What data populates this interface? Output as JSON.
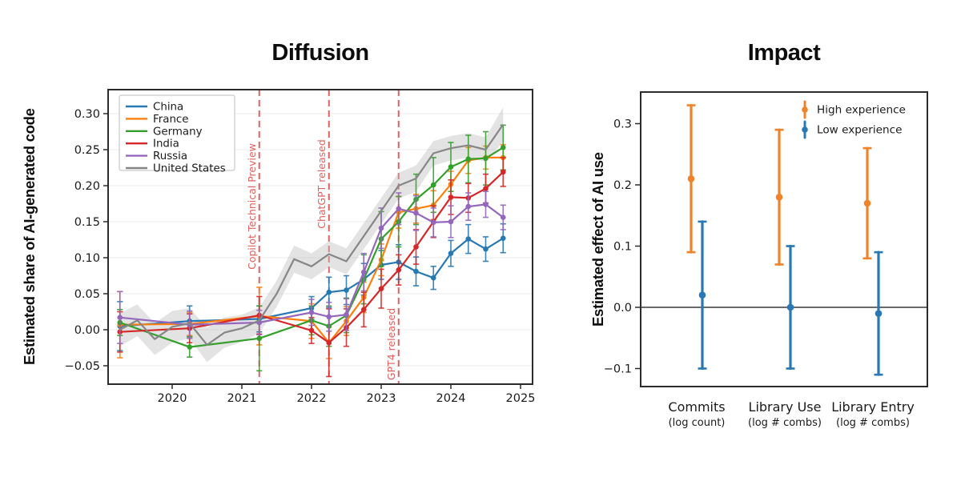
{
  "figure": {
    "background": "#ffffff",
    "panel_titles": [
      "Diffusion",
      "Impact"
    ]
  },
  "chart_data": [
    {
      "type": "line",
      "title": "Diffusion",
      "xlabel": "",
      "ylabel": "Estimated share of AI-generated code",
      "grid": "horizontal",
      "legend_position": "upper-left",
      "xlim": [
        2019.08,
        2025.17
      ],
      "ylim": [
        -0.076,
        0.334
      ],
      "xticks": {
        "values": [
          2020,
          2021,
          2022,
          2023,
          2024,
          2025
        ],
        "labels": [
          "2020",
          "2021",
          "2022",
          "2023",
          "2024",
          "2025"
        ]
      },
      "yticks": {
        "values": [
          -0.05,
          0.0,
          0.05,
          0.1,
          0.15,
          0.2,
          0.25,
          0.3
        ],
        "labels": [
          "−0.05",
          "0.00",
          "0.05",
          "0.10",
          "0.15",
          "0.20",
          "0.25",
          "0.30"
        ]
      },
      "annotation_color": "#e2605e",
      "annotations": [
        {
          "label": "Copilot Technical Preview",
          "x": 2021.25,
          "label_cy": 258
        },
        {
          "label": "ChatGPT released",
          "x": 2022.25,
          "label_cy": 230
        },
        {
          "label": "GPT4 released",
          "x": 2023.25,
          "label_cy": 430
        }
      ],
      "series": [
        {
          "name": "China",
          "color": "#2779b4",
          "marker": "circle",
          "x": [
            2019.25,
            2020.25,
            2021.25,
            2022.0,
            2022.25,
            2022.5,
            2022.75,
            2023.0,
            2023.25,
            2023.5,
            2023.75,
            2024.0,
            2024.25,
            2024.5,
            2024.75
          ],
          "y": [
            0.005,
            0.012,
            0.015,
            0.03,
            0.052,
            0.055,
            0.07,
            0.09,
            0.094,
            0.081,
            0.072,
            0.106,
            0.126,
            0.112,
            0.127
          ],
          "err": [
            0.034,
            0.021,
            0.018,
            0.016,
            0.021,
            0.02,
            0.022,
            0.02,
            0.024,
            0.02,
            0.016,
            0.018,
            0.02,
            0.017,
            0.02
          ]
        },
        {
          "name": "France",
          "color": "#ff7f0e",
          "marker": "circle",
          "x": [
            2019.25,
            2020.25,
            2021.25,
            2022.0,
            2022.25,
            2022.5,
            2022.75,
            2023.0,
            2023.25,
            2023.5,
            2023.75,
            2024.0,
            2024.25,
            2024.5,
            2024.75
          ],
          "y": [
            0.007,
            0.008,
            0.019,
            0.012,
            -0.018,
            0.012,
            0.045,
            0.097,
            0.163,
            0.168,
            0.173,
            0.202,
            0.235,
            0.239,
            0.239
          ],
          "err": [
            0.046,
            0.016,
            0.04,
            0.024,
            0.022,
            0.02,
            0.021,
            0.022,
            0.022,
            0.02,
            0.02,
            0.018,
            0.018,
            0.016,
            0.018
          ]
        },
        {
          "name": "Germany",
          "color": "#33a02c",
          "marker": "circle",
          "x": [
            2019.25,
            2020.25,
            2021.25,
            2022.0,
            2022.25,
            2022.5,
            2022.75,
            2023.0,
            2023.25,
            2023.5,
            2023.75,
            2024.0,
            2024.25,
            2024.5,
            2024.75
          ],
          "y": [
            0.01,
            -0.024,
            -0.012,
            0.013,
            0.005,
            0.02,
            0.07,
            0.126,
            0.15,
            0.181,
            0.201,
            0.226,
            0.237,
            0.238,
            0.253
          ],
          "err": [
            0.018,
            0.014,
            0.045,
            0.02,
            0.028,
            0.024,
            0.034,
            0.038,
            0.035,
            0.035,
            0.038,
            0.034,
            0.033,
            0.037,
            0.031
          ]
        },
        {
          "name": "India",
          "color": "#d62728",
          "marker": "circle",
          "x": [
            2019.25,
            2020.25,
            2021.25,
            2022.0,
            2022.25,
            2022.5,
            2022.75,
            2023.0,
            2023.25,
            2023.5,
            2023.75,
            2024.0,
            2024.25,
            2024.5,
            2024.75
          ],
          "y": [
            -0.003,
            0.002,
            0.02,
            -0.001,
            -0.018,
            0.003,
            0.028,
            0.057,
            0.083,
            0.115,
            0.15,
            0.184,
            0.183,
            0.196,
            0.219
          ],
          "err": [
            0.028,
            0.02,
            0.026,
            0.018,
            0.047,
            0.026,
            0.024,
            0.027,
            0.021,
            0.024,
            0.022,
            0.024,
            0.02,
            0.02,
            0.02
          ]
        },
        {
          "name": "Russia",
          "color": "#9467bd",
          "marker": "circle",
          "x": [
            2019.25,
            2020.25,
            2021.25,
            2022.0,
            2022.25,
            2022.5,
            2022.75,
            2023.0,
            2023.25,
            2023.5,
            2023.75,
            2024.0,
            2024.25,
            2024.5,
            2024.75
          ],
          "y": [
            0.017,
            0.007,
            0.01,
            0.024,
            0.018,
            0.021,
            0.08,
            0.141,
            0.168,
            0.162,
            0.149,
            0.15,
            0.171,
            0.174,
            0.156
          ],
          "err": [
            0.036,
            0.019,
            0.017,
            0.018,
            0.02,
            0.022,
            0.026,
            0.028,
            0.022,
            0.024,
            0.02,
            0.022,
            0.019,
            0.018,
            0.017
          ]
        },
        {
          "name": "United States",
          "color": "#868686",
          "marker": "none",
          "band_color": "#bdbdbd",
          "band_opacity": 0.42,
          "x": [
            2019.25,
            2019.5,
            2019.75,
            2020.0,
            2020.25,
            2020.5,
            2020.75,
            2021.0,
            2021.25,
            2021.5,
            2021.75,
            2022.0,
            2022.25,
            2022.5,
            2022.75,
            2023.0,
            2023.25,
            2023.5,
            2023.75,
            2024.0,
            2024.25,
            2024.5,
            2024.75
          ],
          "y": [
            0.0,
            0.013,
            -0.013,
            0.004,
            0.009,
            -0.021,
            -0.004,
            0.002,
            0.013,
            0.05,
            0.098,
            0.088,
            0.105,
            0.095,
            0.13,
            0.165,
            0.2,
            0.21,
            0.245,
            0.252,
            0.256,
            0.25,
            0.285
          ],
          "band": [
            0.023,
            0.022,
            0.022,
            0.022,
            0.021,
            0.024,
            0.021,
            0.019,
            0.018,
            0.018,
            0.019,
            0.018,
            0.018,
            0.018,
            0.018,
            0.018,
            0.018,
            0.018,
            0.017,
            0.017,
            0.017,
            0.017,
            0.024
          ]
        }
      ]
    },
    {
      "type": "errorbar-categorical",
      "title": "Impact",
      "xlabel": "",
      "ylabel": "Estimated effect of AI use",
      "grid": "off",
      "legend_position": "upper-right",
      "zero_line": true,
      "ylim": [
        -0.129,
        0.352
      ],
      "categories": [
        {
          "label": "Commits",
          "sub": "(log count)"
        },
        {
          "label": "Library Use",
          "sub": "(log # combs)"
        },
        {
          "label": "Library Entry",
          "sub": "(log # combs)"
        }
      ],
      "yticks": {
        "values": [
          -0.1,
          0.0,
          0.1,
          0.2,
          0.3
        ],
        "labels": [
          "−0.1",
          "0.0",
          "0.1",
          "0.2",
          "0.3"
        ]
      },
      "series": [
        {
          "name": "High experience",
          "color": "#f08229",
          "values": [
            0.21,
            0.18,
            0.17
          ],
          "err": [
            0.12,
            0.11,
            0.09
          ]
        },
        {
          "name": "Low experience",
          "color": "#2878b5",
          "values": [
            0.02,
            0.0,
            -0.01
          ],
          "err": [
            0.12,
            0.1,
            0.1
          ]
        }
      ]
    }
  ]
}
